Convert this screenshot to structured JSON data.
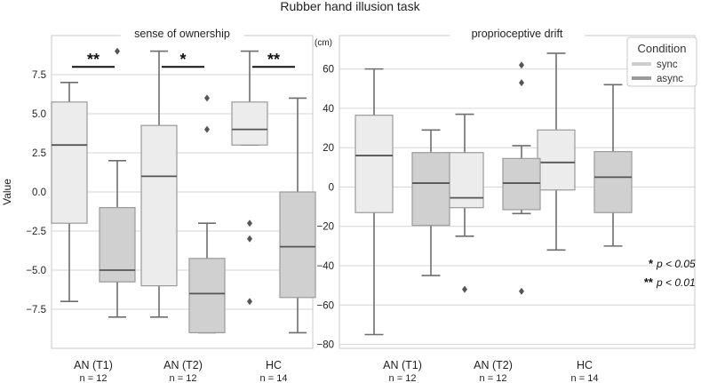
{
  "figure_title": "Rubber hand illusion task",
  "colors": {
    "sync_fill": "#ececec",
    "async_fill": "#d0d0d0",
    "box_edge": "#6e6e6e",
    "grid": "#d6d6d6",
    "frame": "#c8c8c8",
    "sig_line": "#111111"
  },
  "legend": {
    "title": "Condition",
    "items": [
      {
        "label": "sync",
        "color": "#cfcfcf"
      },
      {
        "label": "async",
        "color": "#9a9a9a"
      }
    ]
  },
  "significance_key": [
    {
      "stars": "*",
      "text": "p < 0.05"
    },
    {
      "stars": "**",
      "text": "p < 0.01"
    }
  ],
  "chart_data": [
    {
      "type": "box",
      "title": "sense of ownership",
      "ylabel": "Value",
      "unit_label": "",
      "ylim": [
        -10,
        10
      ],
      "yticks": [
        -7.5,
        -5.0,
        -2.5,
        0.0,
        2.5,
        5.0,
        7.5
      ],
      "ytick_labels": [
        "−7.5",
        "−5.0",
        "−2.5",
        "0.0",
        "2.5",
        "5.0",
        "7.5"
      ],
      "categories": [
        "AN (T1)",
        "AN (T2)",
        "HC"
      ],
      "n_labels": [
        "n = 12",
        "n = 12",
        "n = 14"
      ],
      "series": [
        {
          "name": "sync",
          "boxes": [
            {
              "whislo": -7,
              "q1": -2,
              "med": 3,
              "q3": 5.75,
              "whishi": 7,
              "fliers": []
            },
            {
              "whislo": -8,
              "q1": -6,
              "med": 1,
              "q3": 4.25,
              "whishi": 9,
              "fliers": []
            },
            {
              "whislo": 3,
              "q1": 3,
              "med": 4,
              "q3": 5.75,
              "whishi": 9,
              "fliers": [
                -2,
                -3,
                -7
              ]
            }
          ]
        },
        {
          "name": "async",
          "boxes": [
            {
              "whislo": -8,
              "q1": -5.75,
              "med": -5,
              "q3": -1,
              "whishi": 2,
              "fliers": [
                9
              ]
            },
            {
              "whislo": -9,
              "q1": -9,
              "med": -6.5,
              "q3": -4.25,
              "whishi": -2,
              "fliers": [
                6,
                4
              ]
            },
            {
              "whislo": -9,
              "q1": -6.75,
              "med": -3.5,
              "q3": 0,
              "whishi": 6,
              "fliers": []
            }
          ]
        }
      ],
      "significance": [
        {
          "category": 0,
          "stars": "**",
          "y": 8.0
        },
        {
          "category": 1,
          "stars": "*",
          "y": 8.0
        },
        {
          "category": 2,
          "stars": "**",
          "y": 8.0
        }
      ]
    },
    {
      "type": "box",
      "title": "proprioceptive drift",
      "ylabel": "",
      "unit_label": "(cm)",
      "ylim": [
        -82,
        77
      ],
      "yticks": [
        -80,
        -60,
        -40,
        -20,
        0,
        20,
        40,
        60
      ],
      "ytick_labels": [
        "−80",
        "−60",
        "−40",
        "−20",
        "0",
        "20",
        "40",
        "60"
      ],
      "categories": [
        "AN (T1)",
        "AN (T2)",
        "HC"
      ],
      "n_labels": [
        "n = 12",
        "n = 12",
        "n = 14"
      ],
      "series": [
        {
          "name": "sync",
          "boxes": [
            {
              "whislo": -75,
              "q1": -13,
              "med": 16,
              "q3": 36.5,
              "whishi": 60,
              "fliers": []
            },
            {
              "whislo": -25,
              "q1": -10.5,
              "med": -5.5,
              "q3": 17.5,
              "whishi": 37,
              "fliers": [
                -52
              ]
            },
            {
              "whislo": -32,
              "q1": -1.5,
              "med": 12.5,
              "q3": 29,
              "whishi": 68,
              "fliers": []
            }
          ]
        },
        {
          "name": "async",
          "boxes": [
            {
              "whislo": -45,
              "q1": -19.5,
              "med": 2,
              "q3": 17.5,
              "whishi": 29,
              "fliers": []
            },
            {
              "whislo": -13.5,
              "q1": -11.5,
              "med": 2,
              "q3": 14.5,
              "whishi": 21,
              "fliers": [
                62,
                53,
                -53
              ]
            },
            {
              "whislo": -30,
              "q1": -13,
              "med": 5,
              "q3": 18,
              "whishi": 52,
              "fliers": []
            }
          ]
        }
      ],
      "significance": []
    }
  ]
}
